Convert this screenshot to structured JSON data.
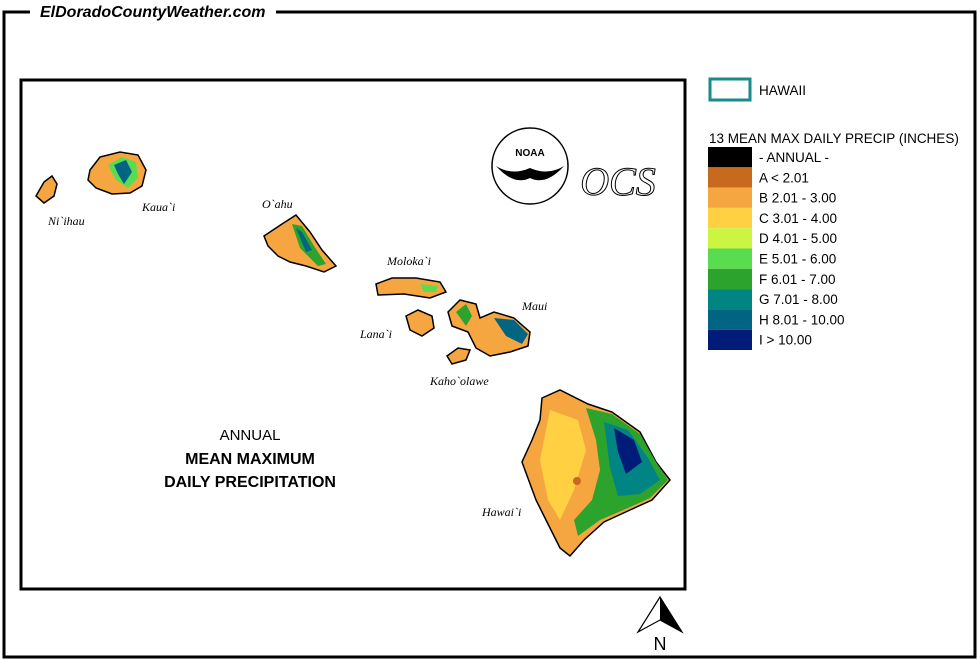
{
  "header": {
    "site": "ElDoradoCountyWeather.com"
  },
  "map": {
    "title": [
      "ANNUAL",
      "MEAN MAXIMUM",
      "DAILY PRECIPITATION"
    ],
    "islands": [
      "Ni`ihau",
      "Kaua`i",
      "O`ahu",
      "Moloka`i",
      "Lana`i",
      "Maui",
      "Kaho`olawe",
      "Hawai`i"
    ],
    "logos": {
      "noaa": "NOAA",
      "ocs": "OCS"
    },
    "north": "N"
  },
  "legend": {
    "region": "HAWAII",
    "heading": "13 MEAN MAX DAILY PRECIP (INCHES)",
    "items": [
      {
        "label": "- ANNUAL -",
        "color": "#000000"
      },
      {
        "label": "A < 2.01",
        "color": "#c86a1e"
      },
      {
        "label": "B 2.01 - 3.00",
        "color": "#f5a640"
      },
      {
        "label": "C 3.01 - 4.00",
        "color": "#ffd042"
      },
      {
        "label": "D 4.01 - 5.00",
        "color": "#ccf542"
      },
      {
        "label": "E 5.01 - 6.00",
        "color": "#5adc50"
      },
      {
        "label": "F 6.01 - 7.00",
        "color": "#2ca32c"
      },
      {
        "label": "G 7.01 - 8.00",
        "color": "#008484"
      },
      {
        "label": "H 8.01 - 10.00",
        "color": "#006482"
      },
      {
        "label": "I > 10.00",
        "color": "#001c78"
      }
    ]
  }
}
